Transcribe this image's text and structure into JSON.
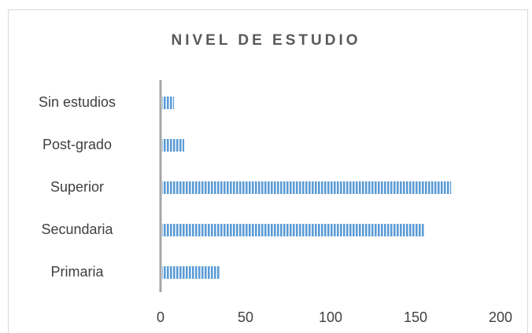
{
  "chart_data": {
    "type": "bar",
    "orientation": "horizontal",
    "title": "NIVEL DE ESTUDIO",
    "categories": [
      "Sin estudios",
      "Post-grado",
      "Superior",
      "Secundaria",
      "Primaria"
    ],
    "values": [
      7,
      13,
      170,
      154,
      34
    ],
    "color": "#5b9bd5",
    "xlim": [
      0,
      200
    ],
    "xticks": [
      0,
      50,
      100,
      150,
      200
    ],
    "grid": false
  }
}
